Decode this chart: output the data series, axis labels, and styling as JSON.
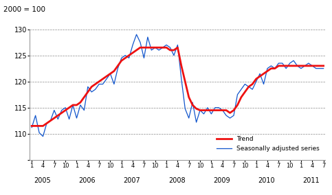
{
  "title": "2000 = 100",
  "ylim": [
    105,
    130
  ],
  "yticks": [
    105,
    110,
    115,
    120,
    125,
    130
  ],
  "bg_color": "#ffffff",
  "trend_color": "#ee1111",
  "seasonal_color": "#1155cc",
  "trend_linewidth": 2.0,
  "seasonal_linewidth": 0.9,
  "grid_color": "#888888",
  "grid_linestyle": "--",
  "year_labels": [
    "2005",
    "2006",
    "2007",
    "2008",
    "2009",
    "2010",
    "2011"
  ],
  "seasonal_data": [
    111.2,
    113.5,
    110.2,
    109.5,
    112.0,
    112.5,
    114.5,
    112.8,
    114.5,
    115.0,
    112.8,
    115.5,
    113.0,
    115.5,
    114.5,
    119.0,
    118.0,
    118.5,
    119.5,
    119.5,
    120.5,
    121.5,
    119.5,
    122.5,
    124.5,
    125.0,
    124.5,
    127.0,
    129.0,
    127.5,
    124.5,
    128.5,
    126.0,
    126.5,
    126.0,
    126.5,
    127.0,
    126.5,
    125.0,
    127.0,
    120.5,
    114.8,
    113.0,
    116.0,
    112.2,
    114.5,
    113.8,
    115.0,
    113.8,
    115.0,
    115.0,
    114.5,
    113.5,
    113.0,
    113.5,
    117.5,
    118.5,
    119.5,
    119.0,
    118.5,
    120.0,
    121.5,
    119.5,
    122.5,
    123.0,
    122.5,
    123.5,
    123.5,
    122.5,
    123.5,
    124.0,
    123.0,
    122.5,
    123.0,
    123.5,
    123.0,
    122.5,
    122.5,
    122.5
  ],
  "trend_data": [
    111.5,
    111.5,
    111.5,
    111.5,
    112.0,
    112.5,
    113.0,
    113.5,
    114.0,
    114.5,
    115.0,
    115.5,
    115.5,
    116.0,
    117.0,
    118.0,
    119.0,
    119.5,
    120.0,
    120.5,
    121.0,
    121.5,
    122.0,
    123.0,
    124.0,
    124.5,
    125.0,
    125.5,
    126.0,
    126.5,
    126.5,
    126.5,
    126.5,
    126.5,
    126.5,
    126.5,
    126.5,
    126.0,
    126.0,
    126.5,
    123.0,
    120.0,
    117.0,
    115.5,
    114.8,
    114.5,
    114.5,
    114.5,
    114.5,
    114.5,
    114.5,
    114.5,
    114.5,
    114.0,
    114.5,
    115.5,
    117.0,
    118.0,
    119.0,
    119.5,
    120.5,
    121.0,
    121.5,
    122.0,
    122.5,
    122.5,
    123.0,
    123.0,
    123.0,
    123.0,
    123.0,
    123.0,
    123.0,
    123.0,
    123.0,
    123.0,
    123.0,
    123.0,
    123.0
  ]
}
